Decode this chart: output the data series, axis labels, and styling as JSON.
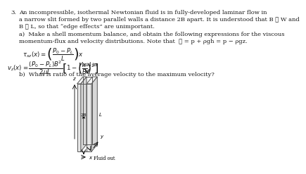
{
  "problem_number": "3.",
  "line1": "An incompressible, isothermal Newtonian fluid is in fully-developed laminar flow in",
  "line2": "a narrow slit formed by two parallel walls a distance 2B apart. It is understood that B ≪ W and",
  "line3": "B ≪ L, so that “edge effects” are unimportant.",
  "line4": "a)  Make a shell momentum balance, and obtain the following expressions for the viscous",
  "line5": "momentum-flux and velocity distributions. Note that  𝒫 = p + ρgh = p − ρgz.",
  "part_b": "b)  What is ratio of the average velocity to the maximum velocity?",
  "bg_color": "#ffffff",
  "text_color": "#1a1a1a",
  "diagram": {
    "fluid_in_label": "Fluid in",
    "fluid_out_label": "Fluid out",
    "twob_label": "2B",
    "z_label": "z",
    "y_label": "y",
    "x_label": "x",
    "L_label": "L"
  }
}
